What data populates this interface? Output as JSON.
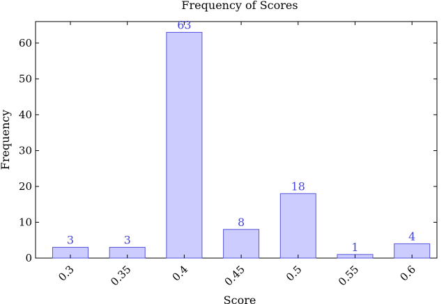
{
  "chart_data": {
    "type": "bar",
    "title": "Frequency of Scores",
    "xlabel": "Score",
    "ylabel": "Frequency",
    "categories": [
      "0.3",
      "0.35",
      "0.4",
      "0.45",
      "0.5",
      "0.55",
      "0.6"
    ],
    "values": [
      3,
      3,
      63,
      8,
      18,
      1,
      4
    ],
    "data_labels": [
      "3",
      "3",
      "63",
      "8",
      "18",
      "1",
      "4"
    ],
    "ylim": [
      0,
      66
    ],
    "yticks": [
      0,
      10,
      20,
      30,
      40,
      50,
      60
    ],
    "ytick_labels": [
      "0",
      "10",
      "20",
      "30",
      "40",
      "50",
      "60"
    ],
    "grid": false,
    "legend": "none",
    "bar_fill": "#ccccff",
    "bar_stroke": "#5555dd",
    "label_color": "#4444dd"
  }
}
